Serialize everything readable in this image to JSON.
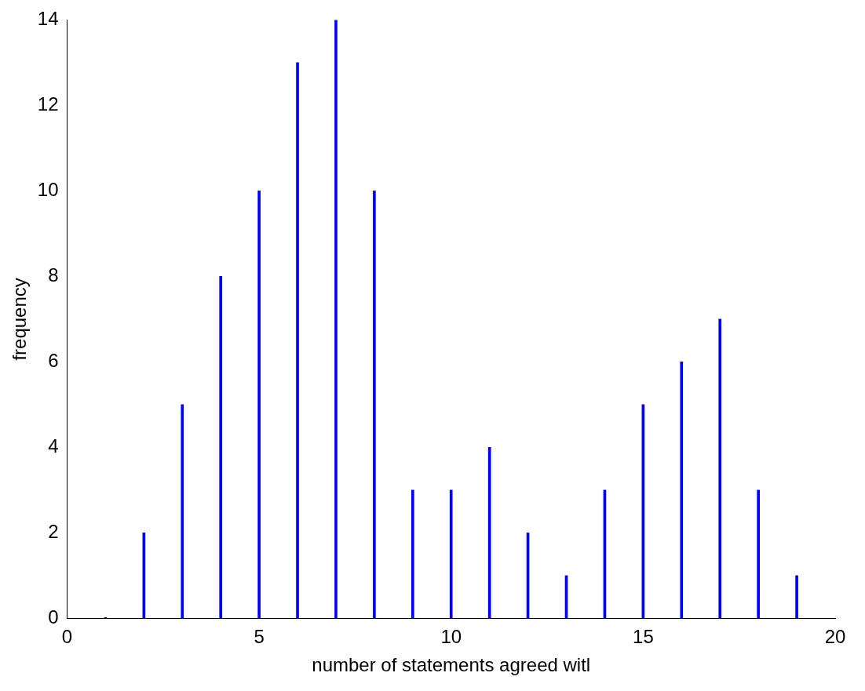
{
  "chart_data": {
    "type": "bar",
    "xlabel": "number of statements agreed witl",
    "ylabel": "frequency",
    "x": [
      1,
      2,
      3,
      4,
      5,
      6,
      7,
      8,
      9,
      10,
      11,
      12,
      13,
      14,
      15,
      16,
      17,
      18,
      19
    ],
    "values": [
      0,
      2,
      5,
      8,
      10,
      13,
      14,
      10,
      3,
      3,
      4,
      2,
      1,
      3,
      5,
      6,
      7,
      3,
      1
    ],
    "color": "#0000ff",
    "xlim": [
      0,
      20
    ],
    "xticks": [
      0,
      5,
      10,
      15,
      20
    ],
    "ylim": [
      0,
      14
    ],
    "yticks": [
      0,
      2,
      4,
      6,
      8,
      10,
      12,
      14
    ],
    "grid": false,
    "legend": false
  }
}
